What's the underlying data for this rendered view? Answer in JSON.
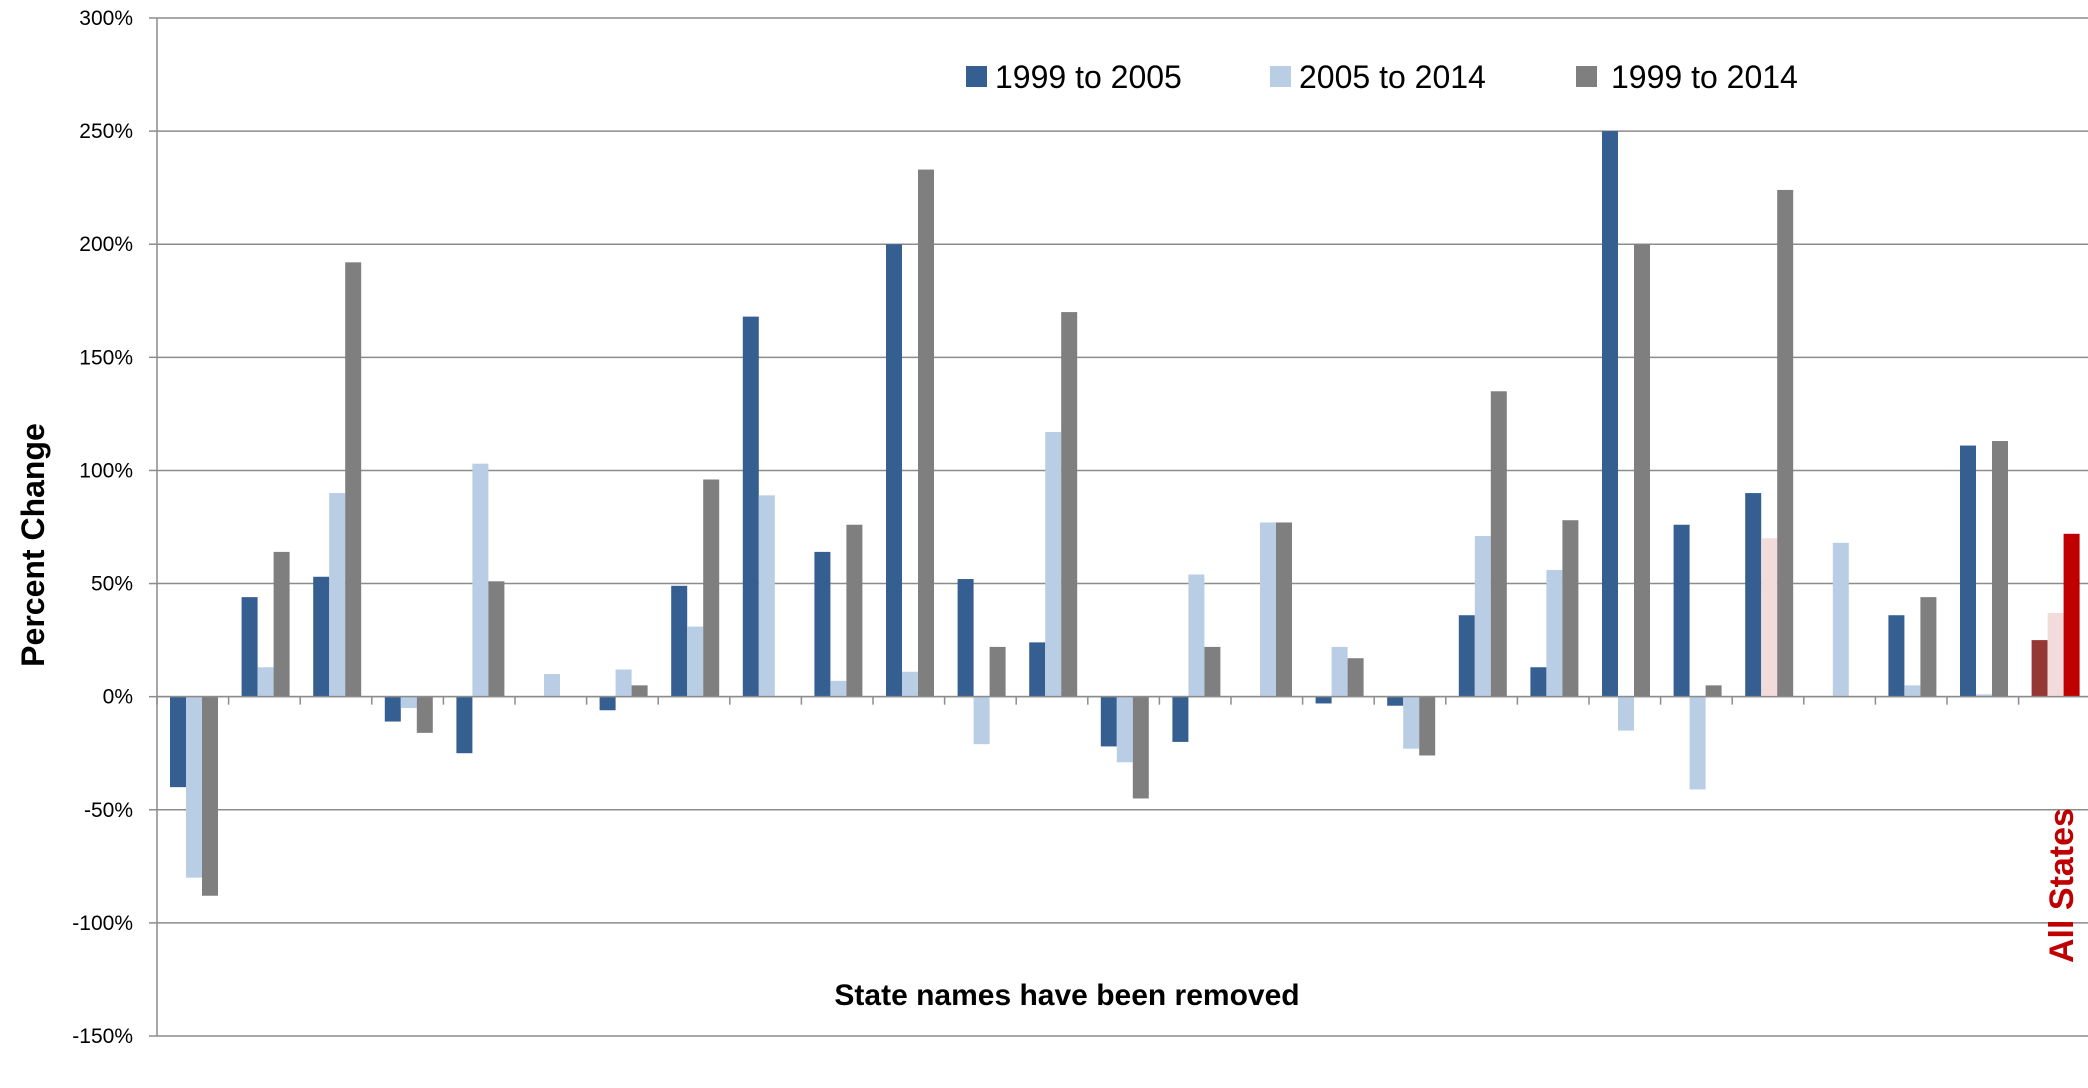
{
  "chart_data": {
    "type": "bar",
    "ylabel": "Percent Change",
    "xlabel": "State names have been removed",
    "annotation": "All States",
    "ylim": [
      -150,
      300
    ],
    "y_ticks": [
      "300%",
      "250%",
      "200%",
      "150%",
      "100%",
      "50%",
      "0%",
      "-50%",
      "-100%",
      "-150%"
    ],
    "y_tick_values": [
      300,
      250,
      200,
      150,
      100,
      50,
      0,
      -50,
      -100,
      -150
    ],
    "grid": true,
    "legend_position": "top",
    "colors": {
      "s1": "#365f91",
      "s2": "#b9cde5",
      "s3": "#7f7f7f",
      "highlight_s1": "#953735",
      "highlight_s2": "#f2dcdb",
      "highlight_s3": "#c00000",
      "annotation": "#c00000"
    },
    "series": [
      {
        "name": "1999 to 2005",
        "values": [
          -40,
          44,
          53,
          -11,
          -25,
          0,
          -6,
          49,
          168,
          64,
          200,
          52,
          24,
          -22,
          -20,
          0,
          -3,
          -4,
          36,
          13,
          250,
          76,
          90,
          0,
          36,
          111,
          25
        ]
      },
      {
        "name": "2005 to 2014",
        "values": [
          -80,
          13,
          90,
          -5,
          103,
          10,
          12,
          31,
          89,
          7,
          11,
          -21,
          117,
          -29,
          54,
          77,
          22,
          -23,
          71,
          56,
          -15,
          -41,
          70,
          68,
          5,
          1,
          37
        ]
      },
      {
        "name": "1999 to 2014",
        "values": [
          -88,
          64,
          192,
          -16,
          51,
          0,
          5,
          96,
          0,
          76,
          233,
          22,
          170,
          -45,
          22,
          77,
          17,
          -26,
          135,
          78,
          200,
          5,
          224,
          0,
          44,
          113,
          72
        ]
      }
    ]
  }
}
